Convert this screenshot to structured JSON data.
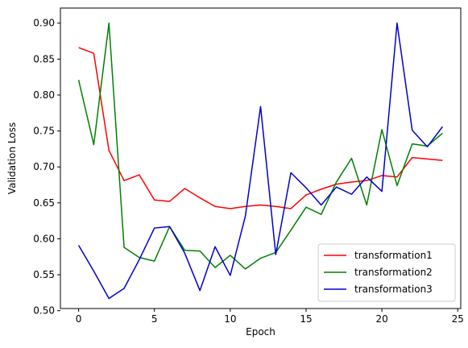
{
  "chart_data": {
    "type": "line",
    "title": "",
    "xlabel": "Epoch",
    "ylabel": "Validation Loss",
    "xlim": [
      -1.2,
      25.2
    ],
    "ylim": [
      0.503,
      0.921
    ],
    "xticks": [
      0,
      5,
      10,
      15,
      20,
      25
    ],
    "yticks": [
      0.5,
      0.55,
      0.6,
      0.65,
      0.7,
      0.75,
      0.8,
      0.85,
      0.9
    ],
    "ytick_labels": [
      "0.50",
      "0.55",
      "0.60",
      "0.65",
      "0.70",
      "0.75",
      "0.80",
      "0.85",
      "0.90"
    ],
    "grid": false,
    "legend_position": "lower-right",
    "x": [
      0,
      1,
      2,
      3,
      4,
      5,
      6,
      7,
      8,
      9,
      10,
      11,
      12,
      13,
      14,
      15,
      16,
      17,
      18,
      19,
      20,
      21,
      22,
      23,
      24
    ],
    "series": [
      {
        "name": "transformation1",
        "color": "#ff0000",
        "values": [
          0.866,
          0.858,
          0.723,
          0.681,
          0.689,
          0.654,
          0.652,
          0.67,
          0.657,
          0.645,
          0.642,
          0.645,
          0.647,
          0.645,
          0.642,
          0.661,
          0.669,
          0.676,
          0.679,
          0.681,
          0.688,
          0.686,
          0.713,
          0.711,
          0.709
        ]
      },
      {
        "name": "transformation2",
        "color": "#008000",
        "values": [
          0.821,
          0.731,
          0.9,
          0.588,
          0.574,
          0.569,
          0.617,
          0.584,
          0.583,
          0.56,
          0.577,
          0.558,
          0.573,
          0.581,
          0.612,
          0.644,
          0.634,
          0.679,
          0.712,
          0.647,
          0.752,
          0.674,
          0.732,
          0.729,
          0.747
        ]
      },
      {
        "name": "transformation3",
        "color": "#0000cd",
        "values": [
          0.591,
          0.555,
          0.517,
          0.531,
          0.571,
          0.615,
          0.617,
          0.58,
          0.528,
          0.589,
          0.549,
          0.632,
          0.784,
          0.578,
          0.692,
          0.671,
          0.647,
          0.672,
          0.662,
          0.686,
          0.666,
          0.9,
          0.751,
          0.728,
          0.756
        ]
      }
    ]
  }
}
